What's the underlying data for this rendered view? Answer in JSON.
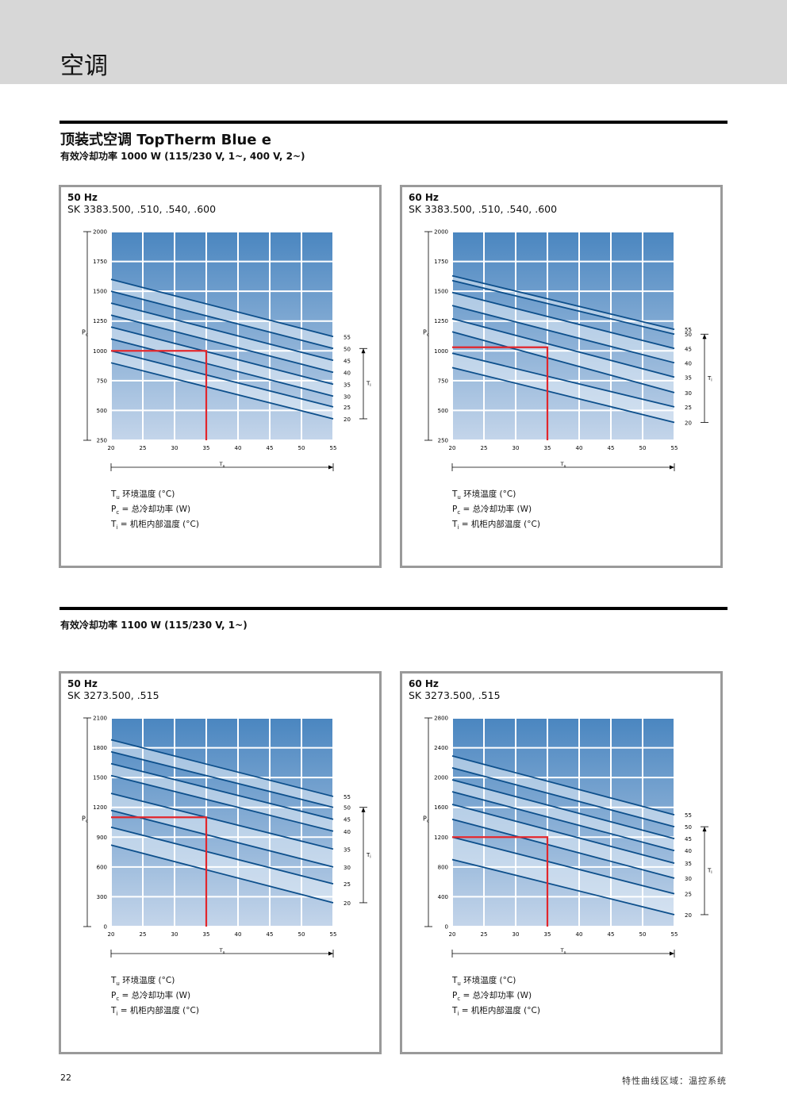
{
  "header": {
    "section_title": "空调"
  },
  "page_title": "顶装式空调 TopTherm Blue e",
  "subtitle_1": "有效冷却功率 1000 W (115/230 V, 1~, 400 V, 2~)",
  "subtitle_2": "有效冷却功率 1100 W (115/230 V, 1~)",
  "legend": {
    "tu_sym": "T",
    "tu_sub": "u",
    "tu_text": " 环境温度 (°C)",
    "pc_sym": "P",
    "pc_sub": "c",
    "pc_text": " = 总冷却功率 (W)",
    "ti_sym": "T",
    "ti_sub": "i",
    "ti_text": "  = 机柜内部温度 (°C)"
  },
  "footer": {
    "page_number": "22",
    "section": "特性曲线区域：温控系统"
  },
  "colors": {
    "line": "#0d4f8b",
    "marker": "#e2262c",
    "fill_top": "#4a86c0",
    "fill_bottom": "#c4d5ea",
    "band": "#e6eef7"
  },
  "chart_data": [
    {
      "type": "line",
      "title": "50 Hz",
      "model": "SK 3383.500, .510, .540, .600",
      "xlabel": "Tu",
      "ylabel": "Pc",
      "rlabel": "Ti",
      "x_ticks": [
        20,
        25,
        30,
        35,
        40,
        45,
        50,
        55
      ],
      "y_ticks": [
        250,
        500,
        750,
        1000,
        1250,
        1500,
        1750,
        2000
      ],
      "xlim": [
        20,
        55
      ],
      "ylim": [
        250,
        2000
      ],
      "ti_labels": [
        "55",
        "50",
        "45",
        "40",
        "35",
        "30",
        "25",
        "20"
      ],
      "series": [
        {
          "name": "55",
          "x": [
            20,
            55
          ],
          "y": [
            1600,
            1120
          ]
        },
        {
          "name": "50",
          "x": [
            20,
            55
          ],
          "y": [
            1500,
            1020
          ]
        },
        {
          "name": "45",
          "x": [
            20,
            55
          ],
          "y": [
            1400,
            920
          ]
        },
        {
          "name": "40",
          "x": [
            20,
            55
          ],
          "y": [
            1300,
            820
          ]
        },
        {
          "name": "35",
          "x": [
            20,
            55
          ],
          "y": [
            1200,
            720
          ]
        },
        {
          "name": "30",
          "x": [
            20,
            55
          ],
          "y": [
            1100,
            620
          ]
        },
        {
          "name": "25",
          "x": [
            20,
            55
          ],
          "y": [
            1000,
            530
          ]
        },
        {
          "name": "20",
          "x": [
            20,
            55
          ],
          "y": [
            900,
            430
          ]
        }
      ],
      "operating_point": {
        "x": 35,
        "y": 1000
      }
    },
    {
      "type": "line",
      "title": "60 Hz",
      "model": "SK 3383.500, .510, .540, .600",
      "xlabel": "Tu",
      "ylabel": "Pc",
      "rlabel": "Ti",
      "x_ticks": [
        20,
        25,
        30,
        35,
        40,
        45,
        50,
        55
      ],
      "y_ticks": [
        250,
        500,
        750,
        1000,
        1250,
        1500,
        1750,
        2000
      ],
      "xlim": [
        20,
        55
      ],
      "ylim": [
        250,
        2000
      ],
      "ti_labels": [
        "55",
        "50",
        "45",
        "40",
        "35",
        "30",
        "25",
        "20"
      ],
      "series": [
        {
          "name": "55",
          "x": [
            20,
            55
          ],
          "y": [
            1630,
            1180
          ]
        },
        {
          "name": "50",
          "x": [
            20,
            55
          ],
          "y": [
            1590,
            1140
          ]
        },
        {
          "name": "45",
          "x": [
            20,
            55
          ],
          "y": [
            1490,
            1020
          ]
        },
        {
          "name": "40",
          "x": [
            20,
            55
          ],
          "y": [
            1380,
            900
          ]
        },
        {
          "name": "35",
          "x": [
            20,
            55
          ],
          "y": [
            1270,
            780
          ]
        },
        {
          "name": "30",
          "x": [
            20,
            55
          ],
          "y": [
            1160,
            650
          ]
        },
        {
          "name": "25",
          "x": [
            20,
            55
          ],
          "y": [
            980,
            530
          ]
        },
        {
          "name": "20",
          "x": [
            20,
            55
          ],
          "y": [
            860,
            400
          ]
        }
      ],
      "operating_point": {
        "x": 35,
        "y": 1030
      }
    },
    {
      "type": "line",
      "title": "50 Hz",
      "model": "SK 3273.500, .515",
      "xlabel": "Tu",
      "ylabel": "Pc",
      "rlabel": "Ti",
      "x_ticks": [
        20,
        25,
        30,
        35,
        40,
        45,
        50,
        55
      ],
      "y_ticks": [
        0,
        300,
        600,
        900,
        1200,
        1500,
        1800,
        2100
      ],
      "xlim": [
        20,
        55
      ],
      "ylim": [
        0,
        2100
      ],
      "ti_labels": [
        "55",
        "50",
        "45",
        "40",
        "35",
        "30",
        "25",
        "20"
      ],
      "series": [
        {
          "name": "55",
          "x": [
            20,
            55
          ],
          "y": [
            1880,
            1310
          ]
        },
        {
          "name": "50",
          "x": [
            20,
            55
          ],
          "y": [
            1760,
            1200
          ]
        },
        {
          "name": "45",
          "x": [
            20,
            55
          ],
          "y": [
            1640,
            1080
          ]
        },
        {
          "name": "40",
          "x": [
            20,
            55
          ],
          "y": [
            1520,
            960
          ]
        },
        {
          "name": "35",
          "x": [
            20,
            55
          ],
          "y": [
            1340,
            780
          ]
        },
        {
          "name": "30",
          "x": [
            20,
            55
          ],
          "y": [
            1170,
            600
          ]
        },
        {
          "name": "25",
          "x": [
            20,
            55
          ],
          "y": [
            1000,
            430
          ]
        },
        {
          "name": "20",
          "x": [
            20,
            55
          ],
          "y": [
            820,
            240
          ]
        }
      ],
      "operating_point": {
        "x": 35,
        "y": 1100
      }
    },
    {
      "type": "line",
      "title": "60 Hz",
      "model": "SK 3273.500, .515",
      "xlabel": "Tu",
      "ylabel": "Pc",
      "rlabel": "Ti",
      "x_ticks": [
        20,
        25,
        30,
        35,
        40,
        45,
        50,
        55
      ],
      "y_ticks": [
        0,
        400,
        800,
        1200,
        1600,
        2000,
        2400,
        2800
      ],
      "xlim": [
        20,
        55
      ],
      "ylim": [
        0,
        2800
      ],
      "ti_labels": [
        "55",
        "50",
        "45",
        "40",
        "35",
        "30",
        "25",
        "20"
      ],
      "series": [
        {
          "name": "55",
          "x": [
            20,
            55
          ],
          "y": [
            2290,
            1500
          ]
        },
        {
          "name": "50",
          "x": [
            20,
            55
          ],
          "y": [
            2130,
            1340
          ]
        },
        {
          "name": "45",
          "x": [
            20,
            55
          ],
          "y": [
            1970,
            1180
          ]
        },
        {
          "name": "40",
          "x": [
            20,
            55
          ],
          "y": [
            1810,
            1020
          ]
        },
        {
          "name": "35",
          "x": [
            20,
            55
          ],
          "y": [
            1640,
            850
          ]
        },
        {
          "name": "30",
          "x": [
            20,
            55
          ],
          "y": [
            1440,
            650
          ]
        },
        {
          "name": "25",
          "x": [
            20,
            55
          ],
          "y": [
            1200,
            440
          ]
        },
        {
          "name": "20",
          "x": [
            20,
            55
          ],
          "y": [
            900,
            160
          ]
        }
      ],
      "operating_point": {
        "x": 35,
        "y": 1200
      }
    }
  ]
}
